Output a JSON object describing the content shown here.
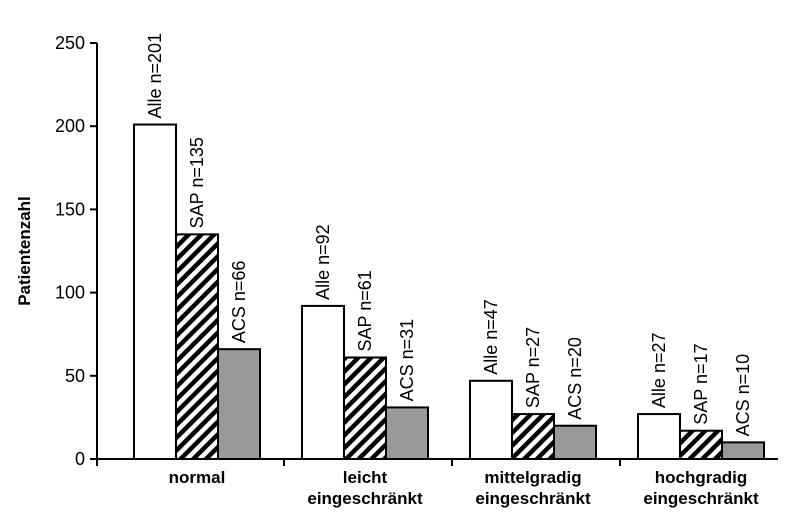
{
  "chart_data": {
    "type": "bar",
    "ylabel": "Patientenzahl",
    "xlabel": "",
    "ylim": [
      0,
      250
    ],
    "yticks": [
      0,
      50,
      100,
      150,
      200,
      250
    ],
    "grid": false,
    "categories": [
      [
        "normal"
      ],
      [
        "leicht",
        "eingeschränkt"
      ],
      [
        "mittelgradig",
        "eingeschränkt"
      ],
      [
        "hochgradig",
        "eingeschränkt"
      ]
    ],
    "series": [
      {
        "name": "Alle",
        "fill": "#ffffff",
        "values": [
          201,
          92,
          47,
          27
        ],
        "labels": [
          "Alle n=201",
          "Alle n=92",
          "Alle n=47",
          "Alle n=27"
        ]
      },
      {
        "name": "SAP",
        "fill": "hatch",
        "values": [
          135,
          61,
          27,
          17
        ],
        "labels": [
          "SAP n=135",
          "SAP n=61",
          "SAP n=27",
          "SAP n=17"
        ]
      },
      {
        "name": "ACS",
        "fill": "#999999",
        "values": [
          66,
          31,
          20,
          10
        ],
        "labels": [
          "ACS n=66",
          "ACS n=31",
          "ACS n=20",
          "ACS n=10"
        ]
      }
    ]
  }
}
